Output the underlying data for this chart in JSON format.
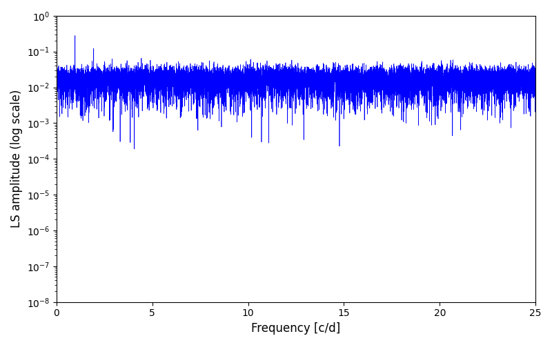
{
  "xlabel": "Frequency [c/d]",
  "ylabel": "LS amplitude (log scale)",
  "xlim": [
    0,
    25
  ],
  "ylim": [
    1e-08,
    1.0
  ],
  "line_color": "#0000ff",
  "line_width": 0.5,
  "figsize": [
    8.0,
    5.0
  ],
  "dpi": 100,
  "seed": 42,
  "n_freq": 10000,
  "freq_max": 25.0,
  "n_obs": 800,
  "t_span": 365.0,
  "background_color": "#ffffff"
}
